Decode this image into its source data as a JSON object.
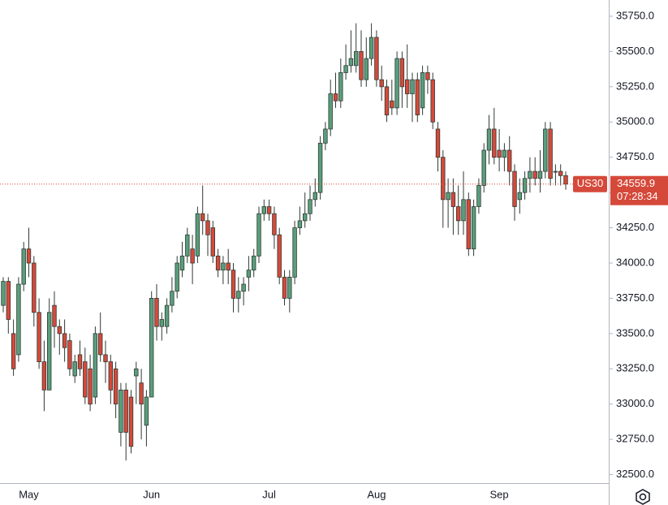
{
  "chart_data": {
    "type": "candlestick",
    "symbol": "US30",
    "last_price": 34559.9,
    "countdown": "07:28:34",
    "up_color": "#5a9e7c",
    "down_color": "#d5493a",
    "outline_color": "#2f3a35",
    "ylim": [
      32440,
      35865
    ],
    "yticks": [
      {
        "value": 32500,
        "label": "32500.0"
      },
      {
        "value": 32750,
        "label": "32750.0"
      },
      {
        "value": 33000,
        "label": "33000.0"
      },
      {
        "value": 33250,
        "label": "33250.0"
      },
      {
        "value": 33500,
        "label": "33500.0"
      },
      {
        "value": 33750,
        "label": "33750.0"
      },
      {
        "value": 34000,
        "label": "34000.0"
      },
      {
        "value": 34250,
        "label": "34250.0"
      },
      {
        "value": 34500,
        "label": "34500.0"
      },
      {
        "value": 34750,
        "label": "34750.0"
      },
      {
        "value": 35000,
        "label": "35000.0"
      },
      {
        "value": 35250,
        "label": "35250.0"
      },
      {
        "value": 35500,
        "label": "35500.0"
      },
      {
        "value": 35750,
        "label": "35750.0"
      }
    ],
    "categories": [
      null,
      null,
      null,
      null,
      null,
      "May",
      null,
      null,
      null,
      null,
      null,
      null,
      null,
      null,
      null,
      null,
      null,
      null,
      null,
      null,
      null,
      null,
      null,
      null,
      null,
      null,
      null,
      null,
      null,
      "Jun",
      null,
      null,
      null,
      null,
      null,
      null,
      null,
      null,
      null,
      null,
      null,
      null,
      null,
      null,
      null,
      null,
      null,
      null,
      null,
      null,
      null,
      null,
      "Jul",
      null,
      null,
      null,
      null,
      null,
      null,
      null,
      null,
      null,
      null,
      null,
      null,
      null,
      null,
      null,
      null,
      null,
      null,
      null,
      null,
      "Aug",
      null,
      null,
      null,
      null,
      null,
      null,
      null,
      null,
      null,
      null,
      null,
      null,
      null,
      null,
      null,
      null,
      null,
      null,
      null,
      null,
      null,
      null,
      null,
      "Sep",
      null,
      null,
      null,
      null,
      null,
      null,
      null,
      null,
      null,
      null,
      null,
      null,
      null
    ],
    "open": [
      33700,
      33870,
      33500,
      33350,
      33850,
      34100,
      34000,
      33650,
      33300,
      33100,
      33700,
      33550,
      33500,
      33450,
      33200,
      33350,
      33300,
      33250,
      33050,
      33500,
      33350,
      33300,
      33250,
      32800,
      33100,
      33050,
      33200,
      33150,
      32850,
      33050,
      33750,
      33550,
      33550,
      33700,
      33800,
      33950,
      34050,
      34100,
      34050,
      34350,
      34300,
      34250,
      34050,
      33950,
      34000,
      33950,
      33750,
      33800,
      33900,
      33950,
      34050,
      34350,
      34400,
      34350,
      34200,
      33900,
      33750,
      33900,
      34250,
      34300,
      34350,
      34450,
      34500,
      34850,
      34950,
      35200,
      35150,
      35350,
      35400,
      35400,
      35500,
      35300,
      35450,
      35600,
      35300,
      35250,
      35150,
      35100,
      35450,
      35300,
      35200,
      35300,
      35100,
      35350,
      35300,
      34950,
      34750,
      34450,
      34500,
      34400,
      34300,
      34450,
      34100,
      34400,
      34550,
      34800,
      34950,
      34800,
      34750,
      34800,
      34650,
      34450,
      34500,
      34600,
      34650,
      34600,
      34650,
      34950,
      34650,
      34650,
      34620
    ],
    "high": [
      33900,
      33900,
      33600,
      33900,
      34150,
      34250,
      34050,
      33750,
      33450,
      33750,
      33800,
      33600,
      33600,
      33500,
      33350,
      33450,
      33400,
      33350,
      33550,
      33650,
      33450,
      33350,
      33300,
      33150,
      33150,
      33100,
      33300,
      33250,
      33100,
      33800,
      33850,
      33650,
      33750,
      33900,
      34050,
      34150,
      34250,
      34200,
      34400,
      34550,
      34350,
      34300,
      34100,
      34050,
      34100,
      34000,
      33900,
      33900,
      34050,
      34100,
      34400,
      34450,
      34450,
      34400,
      34250,
      33950,
      33950,
      34300,
      34400,
      34500,
      34550,
      34600,
      34900,
      35000,
      35300,
      35350,
      35450,
      35550,
      35650,
      35700,
      35650,
      35600,
      35700,
      35650,
      35400,
      35300,
      35300,
      35500,
      35500,
      35550,
      35350,
      35350,
      35400,
      35400,
      35350,
      35000,
      34800,
      34600,
      34600,
      34550,
      34650,
      34500,
      34450,
      34600,
      34850,
      35050,
      35100,
      34950,
      34850,
      34900,
      34700,
      34600,
      34650,
      34750,
      34750,
      34800,
      35000,
      35000,
      34700,
      34700,
      34650
    ],
    "low": [
      33650,
      33500,
      33200,
      33300,
      33800,
      33900,
      33550,
      33250,
      32950,
      33100,
      33400,
      33350,
      33300,
      33200,
      33150,
      33200,
      33000,
      32950,
      33000,
      33300,
      33150,
      33000,
      32900,
      32700,
      32600,
      32650,
      33000,
      32750,
      32700,
      33050,
      33450,
      33450,
      33500,
      33650,
      33750,
      33900,
      34000,
      33850,
      34000,
      34200,
      34050,
      34000,
      33900,
      33850,
      33850,
      33650,
      33650,
      33700,
      33800,
      33900,
      34000,
      34300,
      34300,
      34100,
      33850,
      33700,
      33650,
      33850,
      34200,
      34250,
      34300,
      34400,
      34450,
      34800,
      34900,
      35100,
      35100,
      35300,
      35350,
      35350,
      35250,
      35250,
      35400,
      35250,
      35150,
      35000,
      35050,
      35050,
      35100,
      35100,
      35000,
      35000,
      35050,
      35200,
      34950,
      34650,
      34250,
      34250,
      34200,
      34200,
      34200,
      34050,
      34050,
      34350,
      34500,
      34700,
      34700,
      34650,
      34650,
      34550,
      34300,
      34350,
      34450,
      34500,
      34550,
      34500,
      34600,
      34550,
      34550,
      34550,
      34520
    ],
    "close": [
      33870,
      33600,
      33250,
      33850,
      34100,
      34000,
      33650,
      33300,
      33100,
      33650,
      33550,
      33500,
      33400,
      33250,
      33300,
      33250,
      33050,
      33000,
      33500,
      33350,
      33300,
      33100,
      33000,
      33100,
      32800,
      32700,
      33250,
      33000,
      33050,
      33750,
      33550,
      33600,
      33700,
      33800,
      34000,
      34050,
      34200,
      34000,
      34350,
      34300,
      34200,
      34050,
      33950,
      34000,
      33950,
      33750,
      33800,
      33850,
      33950,
      34050,
      34350,
      34400,
      34350,
      34200,
      33900,
      33750,
      33900,
      34250,
      34300,
      34350,
      34450,
      34500,
      34850,
      34950,
      35200,
      35150,
      35350,
      35400,
      35450,
      35500,
      35300,
      35450,
      35600,
      35300,
      35250,
      35050,
      35100,
      35450,
      35250,
      35200,
      35300,
      35050,
      35350,
      35300,
      35000,
      34750,
      34450,
      34500,
      34400,
      34300,
      34450,
      34100,
      34400,
      34550,
      34800,
      34950,
      34750,
      34750,
      34800,
      34650,
      34400,
      34500,
      34600,
      34650,
      34600,
      34650,
      34950,
      34600,
      34650,
      34620,
      34560
    ]
  }
}
